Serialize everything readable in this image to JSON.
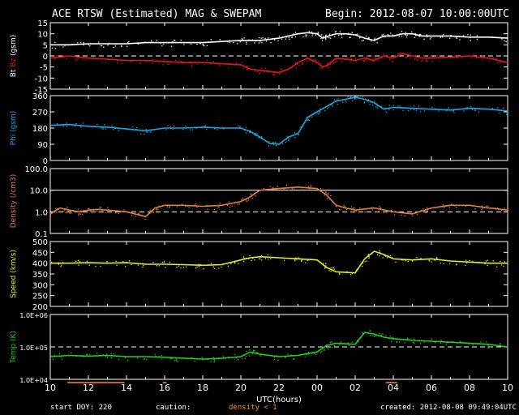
{
  "header": {
    "title": "ACE RTSW (Estimated) MAG & SWEPAM",
    "begin": "Begin: 2012-08-07 10:00:00UTC"
  },
  "footer": {
    "start_doy": "start DOY: 220",
    "caution": "caution:",
    "density_note": "density < 1",
    "created": "created: 2012-08-08 09:49:04UTC"
  },
  "colors": {
    "bt": "#ffffff",
    "bz": "#e01818",
    "phi": "#1aa8e0",
    "density": "#e08040",
    "speed": "#e6e633",
    "temp": "#20cc20",
    "frame": "#ffffff",
    "caution": "#ff8c1a"
  },
  "chart_data": {
    "type": "line",
    "xlabel": "UTC(hours)",
    "x_ticks": [
      "10",
      "12",
      "14",
      "16",
      "18",
      "20",
      "22",
      "00",
      "02",
      "04",
      "06",
      "08",
      "10"
    ],
    "x_range_hours": [
      0,
      24
    ],
    "panels": [
      {
        "id": "mag",
        "ylabel_parts": [
          "Bt",
          "Bz",
          "(gsm)"
        ],
        "ylim": [
          -15,
          15
        ],
        "ticks": [
          "15",
          "10",
          "5",
          "0",
          "-5",
          "-10",
          "-15"
        ],
        "tick_values": [
          15,
          10,
          5,
          0,
          -5,
          -10,
          -15
        ],
        "dashed_ref": 0,
        "series": [
          {
            "name": "Bt",
            "color_key": "bt",
            "x": [
              0,
              1,
              2,
              3,
              4,
              5,
              6,
              7,
              8,
              9,
              10,
              10.5,
              11,
              11.5,
              12,
              12.5,
              13,
              13.5,
              14,
              14.3,
              14.6,
              15,
              15.5,
              16,
              16.5,
              17,
              17.5,
              18,
              18.5,
              19,
              19.5,
              20,
              21,
              22,
              23,
              24
            ],
            "y": [
              5,
              5,
              5.5,
              5.5,
              5.5,
              6,
              6,
              6,
              6,
              6.5,
              7,
              7,
              7,
              7.5,
              8,
              9,
              10,
              10.5,
              10,
              8,
              9,
              10,
              10,
              9.5,
              8,
              7,
              9,
              9,
              10,
              10,
              9,
              9,
              9,
              8.5,
              8.5,
              8
            ]
          },
          {
            "name": "Bz",
            "color_key": "bz",
            "x": [
              0,
              1,
              2,
              3,
              4,
              5,
              6,
              7,
              8,
              9,
              10,
              10.5,
              11,
              11.5,
              12,
              12.5,
              13,
              13.5,
              14,
              14.3,
              14.6,
              15,
              15.5,
              16,
              16.5,
              17,
              17.5,
              18,
              18.5,
              19,
              19.5,
              20,
              21,
              22,
              23,
              24
            ],
            "y": [
              -1,
              0,
              -1,
              -1.5,
              -2,
              -2,
              -2.5,
              -3,
              -3,
              -3.5,
              -4,
              -6,
              -6.5,
              -7,
              -7.5,
              -6,
              -3,
              -1,
              -3,
              -5,
              -4,
              -1,
              -1.5,
              -2,
              -1,
              -2,
              0,
              -1,
              1,
              0,
              -1,
              -1,
              -0.5,
              0,
              -1,
              -3
            ]
          }
        ]
      },
      {
        "id": "phi",
        "ylabel_parts": [
          "Phi (gsm)"
        ],
        "ylim": [
          0,
          360
        ],
        "ticks": [
          "360",
          "270",
          "180",
          "90",
          "0"
        ],
        "tick_values": [
          360,
          270,
          180,
          90,
          0
        ],
        "series": [
          {
            "name": "Phi",
            "color_key": "phi",
            "x": [
              0,
              1,
              2,
              3,
              4,
              5,
              6,
              7,
              8,
              9,
              10,
              10.5,
              11,
              11.5,
              12,
              12.5,
              13,
              13.5,
              14,
              14.5,
              15,
              15.5,
              16,
              16.5,
              17,
              17.5,
              18,
              19,
              20,
              21,
              22,
              23,
              24
            ],
            "y": [
              195,
              200,
              190,
              185,
              175,
              165,
              180,
              180,
              185,
              180,
              180,
              160,
              130,
              95,
              90,
              130,
              150,
              240,
              270,
              300,
              330,
              340,
              350,
              340,
              320,
              285,
              295,
              290,
              285,
              280,
              290,
              285,
              275
            ]
          }
        ]
      },
      {
        "id": "density",
        "ylabel_parts": [
          "Density (/cm3)"
        ],
        "scale": "log",
        "ylim": [
          0.1,
          100
        ],
        "ticks": [
          "100.0",
          "10.0",
          "1.0",
          "0.1"
        ],
        "tick_values": [
          100,
          10,
          1,
          0.1
        ],
        "solid_ref": 10,
        "dashed_ref": 1,
        "series": [
          {
            "name": "Density",
            "color_key": "density",
            "x": [
              0,
              0.5,
              1,
              1.5,
              2,
              2.5,
              3,
              4,
              5,
              5.5,
              6,
              7,
              8,
              9,
              10,
              10.5,
              11,
              12,
              13,
              14,
              14.5,
              15,
              15.5,
              16,
              17,
              18,
              19,
              20,
              21,
              22,
              23,
              24
            ],
            "y": [
              0.8,
              1.5,
              1.2,
              1,
              1.2,
              1.3,
              1.2,
              1,
              0.6,
              1.5,
              2,
              2,
              1.8,
              2,
              3,
              5,
              10,
              12,
              14,
              12,
              6,
              2,
              1.5,
              1.2,
              1.5,
              1,
              0.8,
              1.5,
              2,
              2,
              1.5,
              1.2
            ]
          }
        ]
      },
      {
        "id": "speed",
        "ylabel_parts": [
          "Speed (km/s)"
        ],
        "ylim": [
          200,
          500
        ],
        "ticks": [
          "500",
          "450",
          "400",
          "350",
          "300",
          "250",
          "200"
        ],
        "tick_values": [
          500,
          450,
          400,
          350,
          300,
          250,
          200
        ],
        "series": [
          {
            "name": "Speed",
            "color_key": "speed",
            "x": [
              0,
              1,
              2,
              3,
              4,
              5,
              6,
              7,
              8,
              9,
              10,
              10.5,
              11,
              12,
              13,
              14,
              14.5,
              15,
              16,
              16.5,
              17,
              17.5,
              18,
              19,
              20,
              21,
              22,
              23,
              24
            ],
            "y": [
              400,
              400,
              402,
              400,
              402,
              395,
              395,
              393,
              390,
              393,
              415,
              425,
              430,
              425,
              420,
              415,
              380,
              360,
              355,
              420,
              455,
              440,
              420,
              415,
              420,
              410,
              405,
              400,
              400
            ]
          }
        ]
      },
      {
        "id": "temp",
        "ylabel_parts": [
          "Temp (K)"
        ],
        "scale": "log",
        "ylim": [
          10000,
          1000000
        ],
        "ticks": [
          "1.0E+06",
          "1.0E+05",
          "1.0E+04"
        ],
        "tick_values": [
          1000000,
          100000,
          10000
        ],
        "dashed_ref": 100000,
        "series": [
          {
            "name": "Temp",
            "color_key": "temp",
            "x": [
              0,
              1,
              2,
              3,
              4,
              5,
              6,
              7,
              8,
              9,
              10,
              10.5,
              11,
              12,
              13,
              14,
              14.5,
              15,
              16,
              16.5,
              17,
              17.5,
              18,
              19,
              20,
              21,
              22,
              23,
              24
            ],
            "y": [
              50000,
              55000,
              52000,
              55000,
              50000,
              50000,
              48000,
              45000,
              42000,
              45000,
              50000,
              70000,
              60000,
              50000,
              55000,
              70000,
              110000,
              130000,
              120000,
              280000,
              250000,
              200000,
              180000,
              160000,
              150000,
              140000,
              130000,
              120000,
              100000
            ]
          }
        ]
      }
    ],
    "caution_marks_hours": [
      [
        0.9,
        3.9
      ],
      [
        5.9,
        6.1
      ],
      [
        17.6,
        18.2
      ]
    ]
  }
}
